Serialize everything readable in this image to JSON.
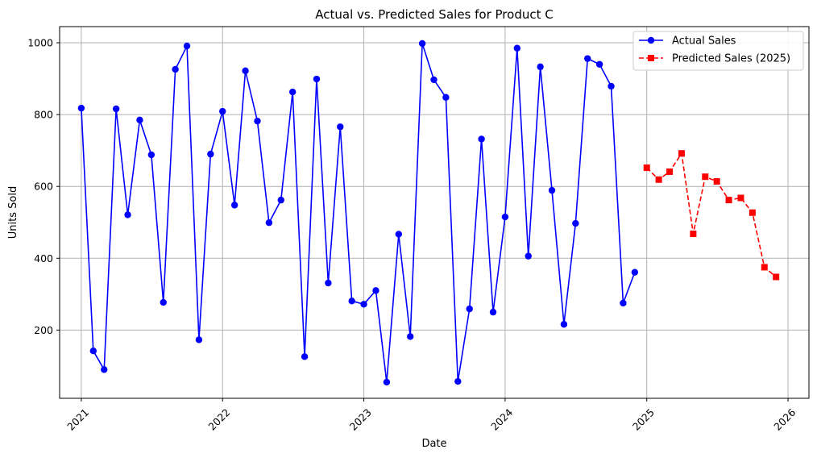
{
  "chart_data": {
    "type": "line",
    "title": "Actual vs. Predicted Sales for Product C",
    "xlabel": "Date",
    "ylabel": "Units Sold",
    "x_ticks": [
      "2021",
      "2022",
      "2023",
      "2024",
      "2025",
      "2026"
    ],
    "y_ticks": [
      200,
      400,
      600,
      800,
      1000
    ],
    "ylim": [
      10,
      1045
    ],
    "xlim": [
      "2020-11-06",
      "2026-02-24"
    ],
    "grid": true,
    "legend_position": "top-right",
    "series": [
      {
        "name": "Actual Sales",
        "color": "#0000ff",
        "line_style": "solid",
        "marker": "circle",
        "x": [
          "2021-01",
          "2021-02",
          "2021-03",
          "2021-04",
          "2021-05",
          "2021-06",
          "2021-07",
          "2021-08",
          "2021-09",
          "2021-10",
          "2021-11",
          "2021-12",
          "2022-01",
          "2022-02",
          "2022-03",
          "2022-04",
          "2022-05",
          "2022-06",
          "2022-07",
          "2022-08",
          "2022-09",
          "2022-10",
          "2022-11",
          "2022-12",
          "2023-01",
          "2023-02",
          "2023-03",
          "2023-04",
          "2023-05",
          "2023-06",
          "2023-07",
          "2023-08",
          "2023-09",
          "2023-10",
          "2023-11",
          "2023-12",
          "2024-01",
          "2024-02",
          "2024-03",
          "2024-04",
          "2024-05",
          "2024-06",
          "2024-07",
          "2024-08",
          "2024-09",
          "2024-10",
          "2024-11",
          "2024-12"
        ],
        "values": [
          818,
          142,
          90,
          816,
          521,
          785,
          688,
          277,
          926,
          991,
          173,
          690,
          809,
          548,
          922,
          782,
          499,
          562,
          863,
          126,
          899,
          331,
          766,
          281,
          272,
          310,
          55,
          467,
          182,
          998,
          897,
          848,
          57,
          259,
          732,
          250,
          515,
          985,
          406,
          933,
          589,
          216,
          497,
          956,
          940,
          879,
          275,
          361
        ]
      },
      {
        "name": "Predicted Sales (2025)",
        "color": "#ff0000",
        "line_style": "dashed",
        "marker": "square",
        "x": [
          "2025-01",
          "2025-02",
          "2025-03",
          "2025-04",
          "2025-05",
          "2025-06",
          "2025-07",
          "2025-08",
          "2025-09",
          "2025-10",
          "2025-11",
          "2025-12"
        ],
        "values": [
          652,
          619,
          641,
          692,
          468,
          627,
          614,
          562,
          568,
          527,
          375,
          348
        ]
      }
    ]
  }
}
